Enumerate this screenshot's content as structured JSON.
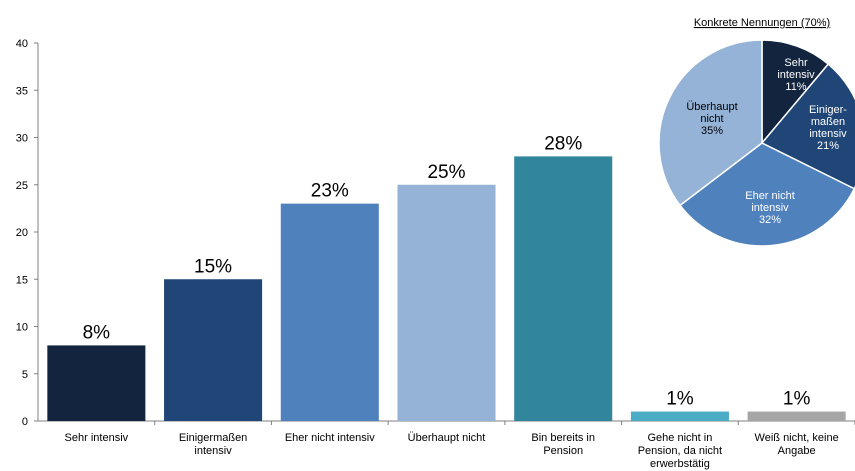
{
  "chart_data": [
    {
      "type": "bar",
      "categories": [
        [
          "Sehr intensiv"
        ],
        [
          "Einigermaßen",
          "intensiv"
        ],
        [
          "Eher nicht intensiv"
        ],
        [
          "Überhaupt nicht"
        ],
        [
          "Bin bereits in",
          "Pension"
        ],
        [
          "Gehe nicht in",
          "Pension, da nicht",
          "erwerbstätig"
        ],
        [
          "Weiß nicht, keine",
          "Angabe"
        ]
      ],
      "values": [
        8,
        15,
        23,
        25,
        28,
        1,
        1
      ],
      "data_labels": [
        "8%",
        "15%",
        "23%",
        "25%",
        "28%",
        "1%",
        "1%"
      ],
      "colors": [
        "#13243f",
        "#1f4677",
        "#4f81bd",
        "#95b3d7",
        "#31859c",
        "#4bacc6",
        "#a6a6a6"
      ],
      "ylim": [
        0,
        40
      ],
      "yticks": [
        0,
        5,
        10,
        15,
        20,
        25,
        30,
        35,
        40
      ],
      "grid": false
    },
    {
      "type": "pie",
      "title": "Konkrete Nennungen (70%)",
      "slices": [
        {
          "label": [
            "Sehr",
            "intensiv",
            "11%"
          ],
          "value": 11,
          "color": "#13243f",
          "text_color": "#ffffff"
        },
        {
          "label": [
            "Einiger-",
            "maßen",
            "intensiv",
            "21%"
          ],
          "value": 21,
          "color": "#1f4677",
          "text_color": "#ffffff"
        },
        {
          "label": [
            "Eher nicht",
            "intensiv",
            "32%"
          ],
          "value": 32,
          "color": "#4f81bd",
          "text_color": "#ffffff"
        },
        {
          "label": [
            "Überhaupt",
            "nicht",
            "35%"
          ],
          "value": 35,
          "color": "#95b3d7",
          "text_color": "#000000"
        }
      ]
    }
  ]
}
